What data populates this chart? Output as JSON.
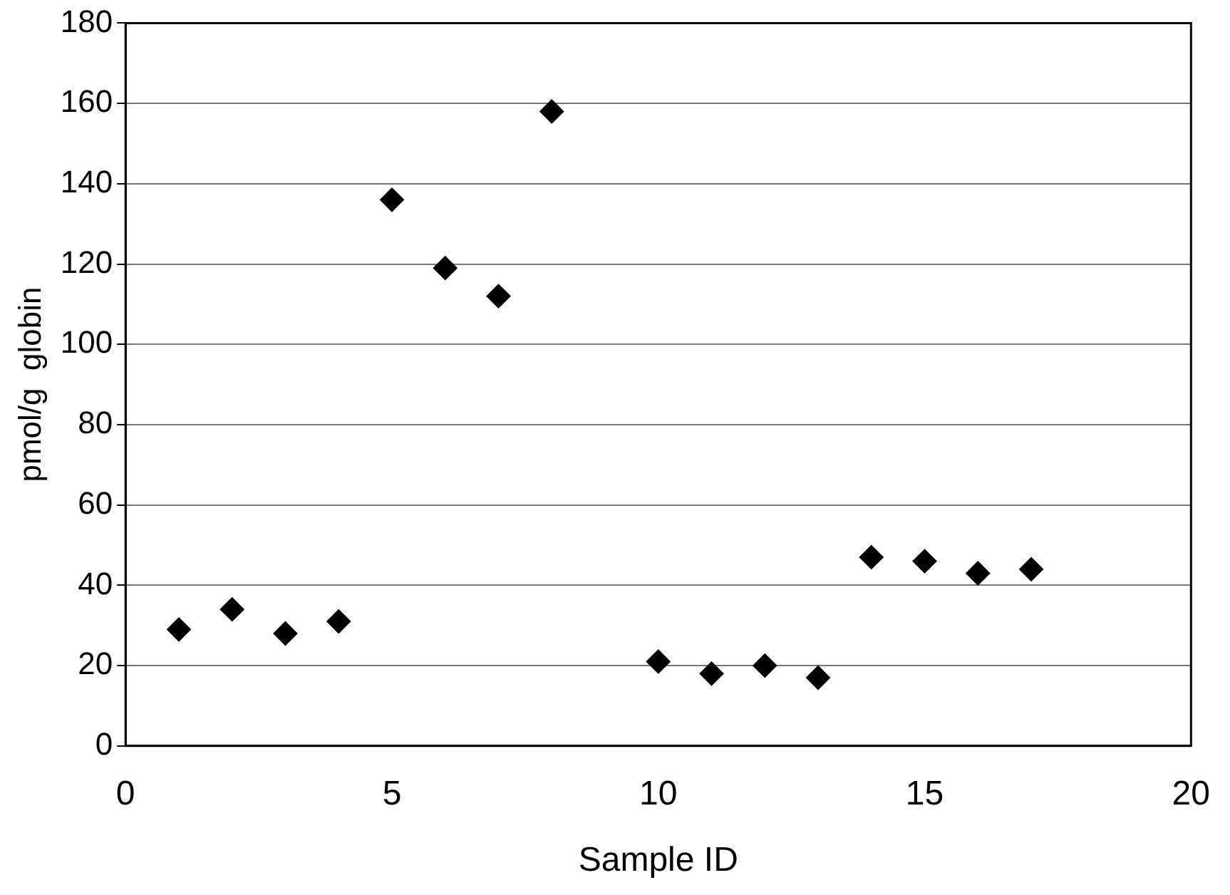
{
  "chart_data": {
    "type": "scatter",
    "xlabel": "Sample ID",
    "ylabel": "pmol/g  globin",
    "x": [
      1,
      2,
      3,
      4,
      5,
      6,
      7,
      8,
      10,
      11,
      12,
      13,
      14,
      15,
      16,
      17
    ],
    "values": [
      29,
      34,
      28,
      31,
      136,
      119,
      112,
      158,
      21,
      18,
      20,
      17,
      47,
      46,
      43,
      44
    ],
    "color": "#000000",
    "marker": "diamond",
    "xlim": [
      0,
      20
    ],
    "xticks": [
      0,
      5,
      10,
      15,
      20
    ],
    "ylim": [
      0,
      180
    ],
    "yticks": [
      0,
      20,
      40,
      60,
      80,
      100,
      120,
      140,
      160,
      180
    ],
    "grid": "y",
    "legend": false
  }
}
